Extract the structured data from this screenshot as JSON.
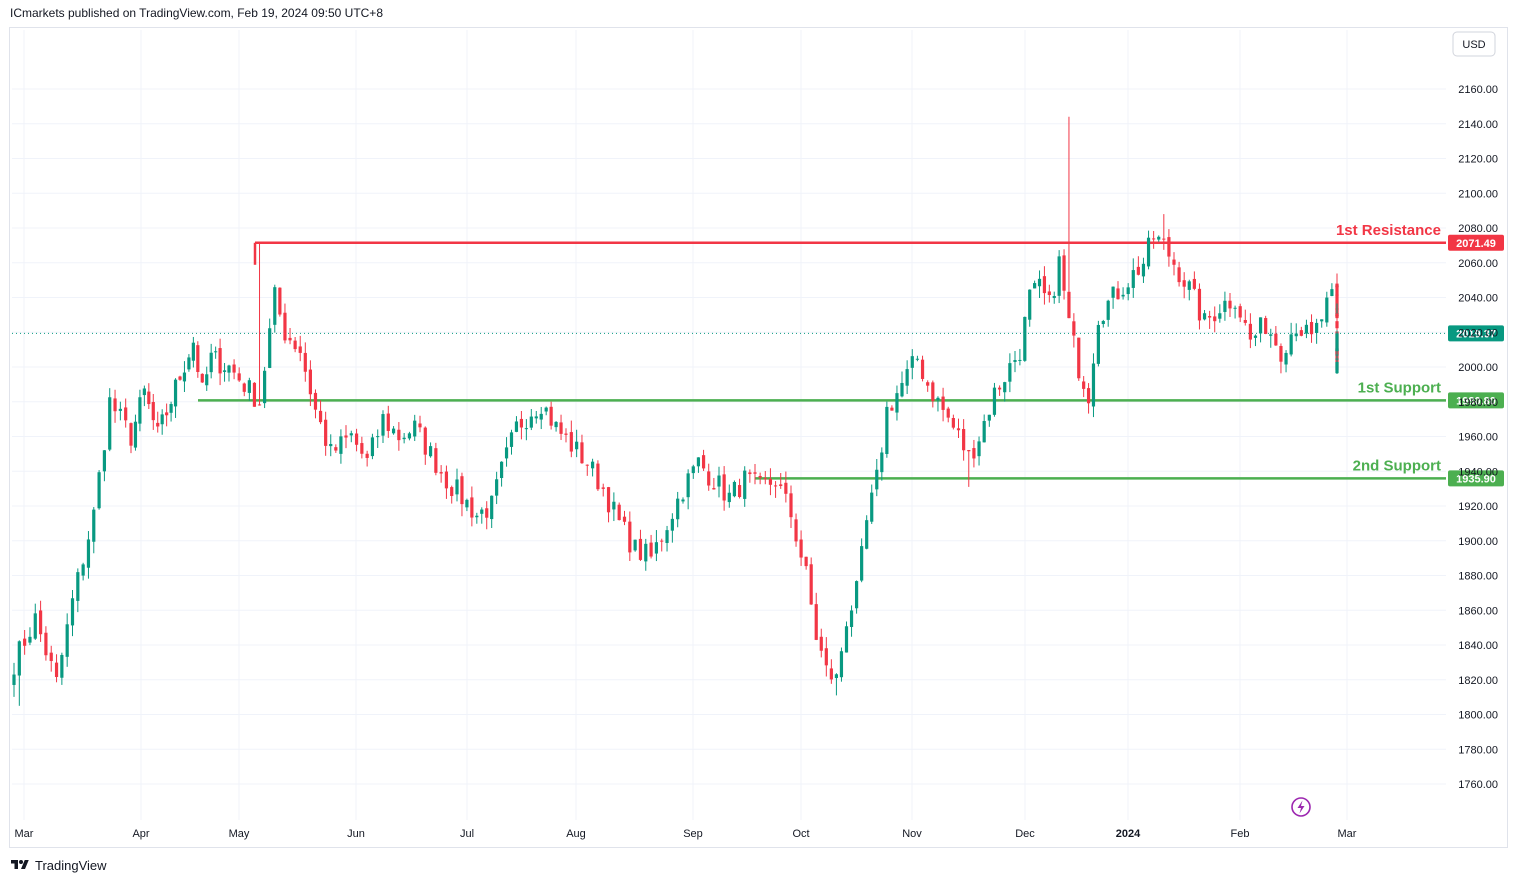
{
  "header": {
    "text": "ICmarkets published on TradingView.com, Feb 19, 2024 09:50 UTC+8"
  },
  "footer": {
    "brand": "TradingView"
  },
  "currency_button": {
    "label": "USD"
  },
  "colors": {
    "up": "#089981",
    "down": "#f23645",
    "resistance": "#f23645",
    "support": "#4caf50",
    "last_price": "#089981",
    "grid": "#f0f3fa",
    "axis_text": "#131722"
  },
  "icons": [
    "tradingview-logo-icon",
    "lightning-icon"
  ],
  "chart_data": {
    "type": "candlestick",
    "y_axis": {
      "min": 1740,
      "max": 2180,
      "ticks": [
        1760,
        1780,
        1800,
        1820,
        1840,
        1860,
        1880,
        1900,
        1920,
        1940,
        1960,
        1980,
        2000,
        2020,
        2040,
        2060,
        2080,
        2100,
        2120,
        2140,
        2160
      ]
    },
    "x_axis": {
      "labels": [
        "Mar",
        "Apr",
        "May",
        "Jun",
        "Jul",
        "Aug",
        "Sep",
        "Oct",
        "Nov",
        "Dec",
        "2024",
        "Feb",
        "Mar"
      ]
    },
    "levels": [
      {
        "name": "1st Resistance",
        "value": 2071.49,
        "label": "2071.49",
        "kind": "resistance",
        "start_month": "May"
      },
      {
        "name": "1st Support",
        "value": 1980.8,
        "label": "1980.80",
        "kind": "support",
        "start_month": "Apr"
      },
      {
        "name": "2nd Support",
        "value": 1935.9,
        "label": "1935.90",
        "kind": "support",
        "start_month": "Sep"
      }
    ],
    "last_price": {
      "value": 2019.37,
      "label": "2019.37"
    },
    "close_anchors": [
      [
        0,
        1830
      ],
      [
        4,
        1855
      ],
      [
        8,
        1818
      ],
      [
        11,
        1865
      ],
      [
        15,
        1915
      ],
      [
        18,
        1980
      ],
      [
        22,
        1960
      ],
      [
        25,
        1985
      ],
      [
        28,
        1960
      ],
      [
        33,
        1995
      ],
      [
        36,
        2015
      ],
      [
        38,
        1985
      ],
      [
        40,
        2005
      ],
      [
        44,
        2000
      ],
      [
        47,
        1990
      ],
      [
        50,
        1980
      ],
      [
        53,
        2040
      ],
      [
        55,
        2020
      ],
      [
        58,
        2010
      ],
      [
        61,
        1975
      ],
      [
        64,
        1950
      ],
      [
        68,
        1960
      ],
      [
        71,
        1945
      ],
      [
        74,
        1970
      ],
      [
        77,
        1960
      ],
      [
        80,
        1965
      ],
      [
        83,
        1950
      ],
      [
        86,
        1935
      ],
      [
        89,
        1925
      ],
      [
        92,
        1915
      ],
      [
        95,
        1920
      ],
      [
        97,
        1940
      ],
      [
        100,
        1965
      ],
      [
        103,
        1975
      ],
      [
        105,
        1980
      ],
      [
        108,
        1965
      ],
      [
        111,
        1955
      ],
      [
        114,
        1945
      ],
      [
        117,
        1930
      ],
      [
        120,
        1910
      ],
      [
        123,
        1895
      ],
      [
        126,
        1890
      ],
      [
        129,
        1910
      ],
      [
        132,
        1930
      ],
      [
        135,
        1945
      ],
      [
        138,
        1935
      ],
      [
        141,
        1925
      ],
      [
        144,
        1935
      ],
      [
        147,
        1930
      ],
      [
        150,
        1935
      ],
      [
        153,
        1915
      ],
      [
        156,
        1880
      ],
      [
        158,
        1845
      ],
      [
        160,
        1825
      ],
      [
        162,
        1820
      ],
      [
        164,
        1855
      ],
      [
        166,
        1870
      ],
      [
        168,
        1910
      ],
      [
        170,
        1935
      ],
      [
        172,
        1975
      ],
      [
        174,
        1985
      ],
      [
        176,
        1995
      ],
      [
        178,
        2005
      ],
      [
        180,
        1990
      ],
      [
        183,
        1975
      ],
      [
        186,
        1960
      ],
      [
        188,
        1948
      ],
      [
        190,
        1960
      ],
      [
        193,
        1985
      ],
      [
        196,
        2000
      ],
      [
        198,
        2010
      ],
      [
        200,
        2040
      ],
      [
        202,
        2045
      ],
      [
        204,
        2035
      ],
      [
        206,
        2060
      ],
      [
        208,
        2025
      ],
      [
        210,
        2000
      ],
      [
        212,
        1985
      ],
      [
        214,
        2030
      ],
      [
        217,
        2040
      ],
      [
        220,
        2050
      ],
      [
        223,
        2060
      ],
      [
        225,
        2075
      ],
      [
        227,
        2070
      ],
      [
        229,
        2060
      ],
      [
        232,
        2045
      ],
      [
        235,
        2025
      ],
      [
        238,
        2035
      ],
      [
        241,
        2040
      ],
      [
        244,
        2015
      ],
      [
        247,
        2025
      ],
      [
        250,
        2010
      ],
      [
        253,
        2025
      ],
      [
        256,
        2015
      ],
      [
        259,
        2035
      ],
      [
        262,
        2045
      ],
      [
        265,
        2030
      ],
      [
        268,
        2030
      ],
      [
        270,
        2020
      ],
      [
        272,
        1995
      ],
      [
        274,
        2000
      ],
      [
        276,
        2008
      ],
      [
        277,
        2019.37
      ]
    ],
    "notable_highs": [
      {
        "index": 50,
        "value": 2071.49
      },
      {
        "index": 208,
        "value": 2144
      },
      {
        "index": 227,
        "value": 2088
      }
    ],
    "notable_lows": [
      {
        "index": 1,
        "value": 1805
      },
      {
        "index": 162,
        "value": 1811
      },
      {
        "index": 188,
        "value": 1931
      }
    ]
  }
}
